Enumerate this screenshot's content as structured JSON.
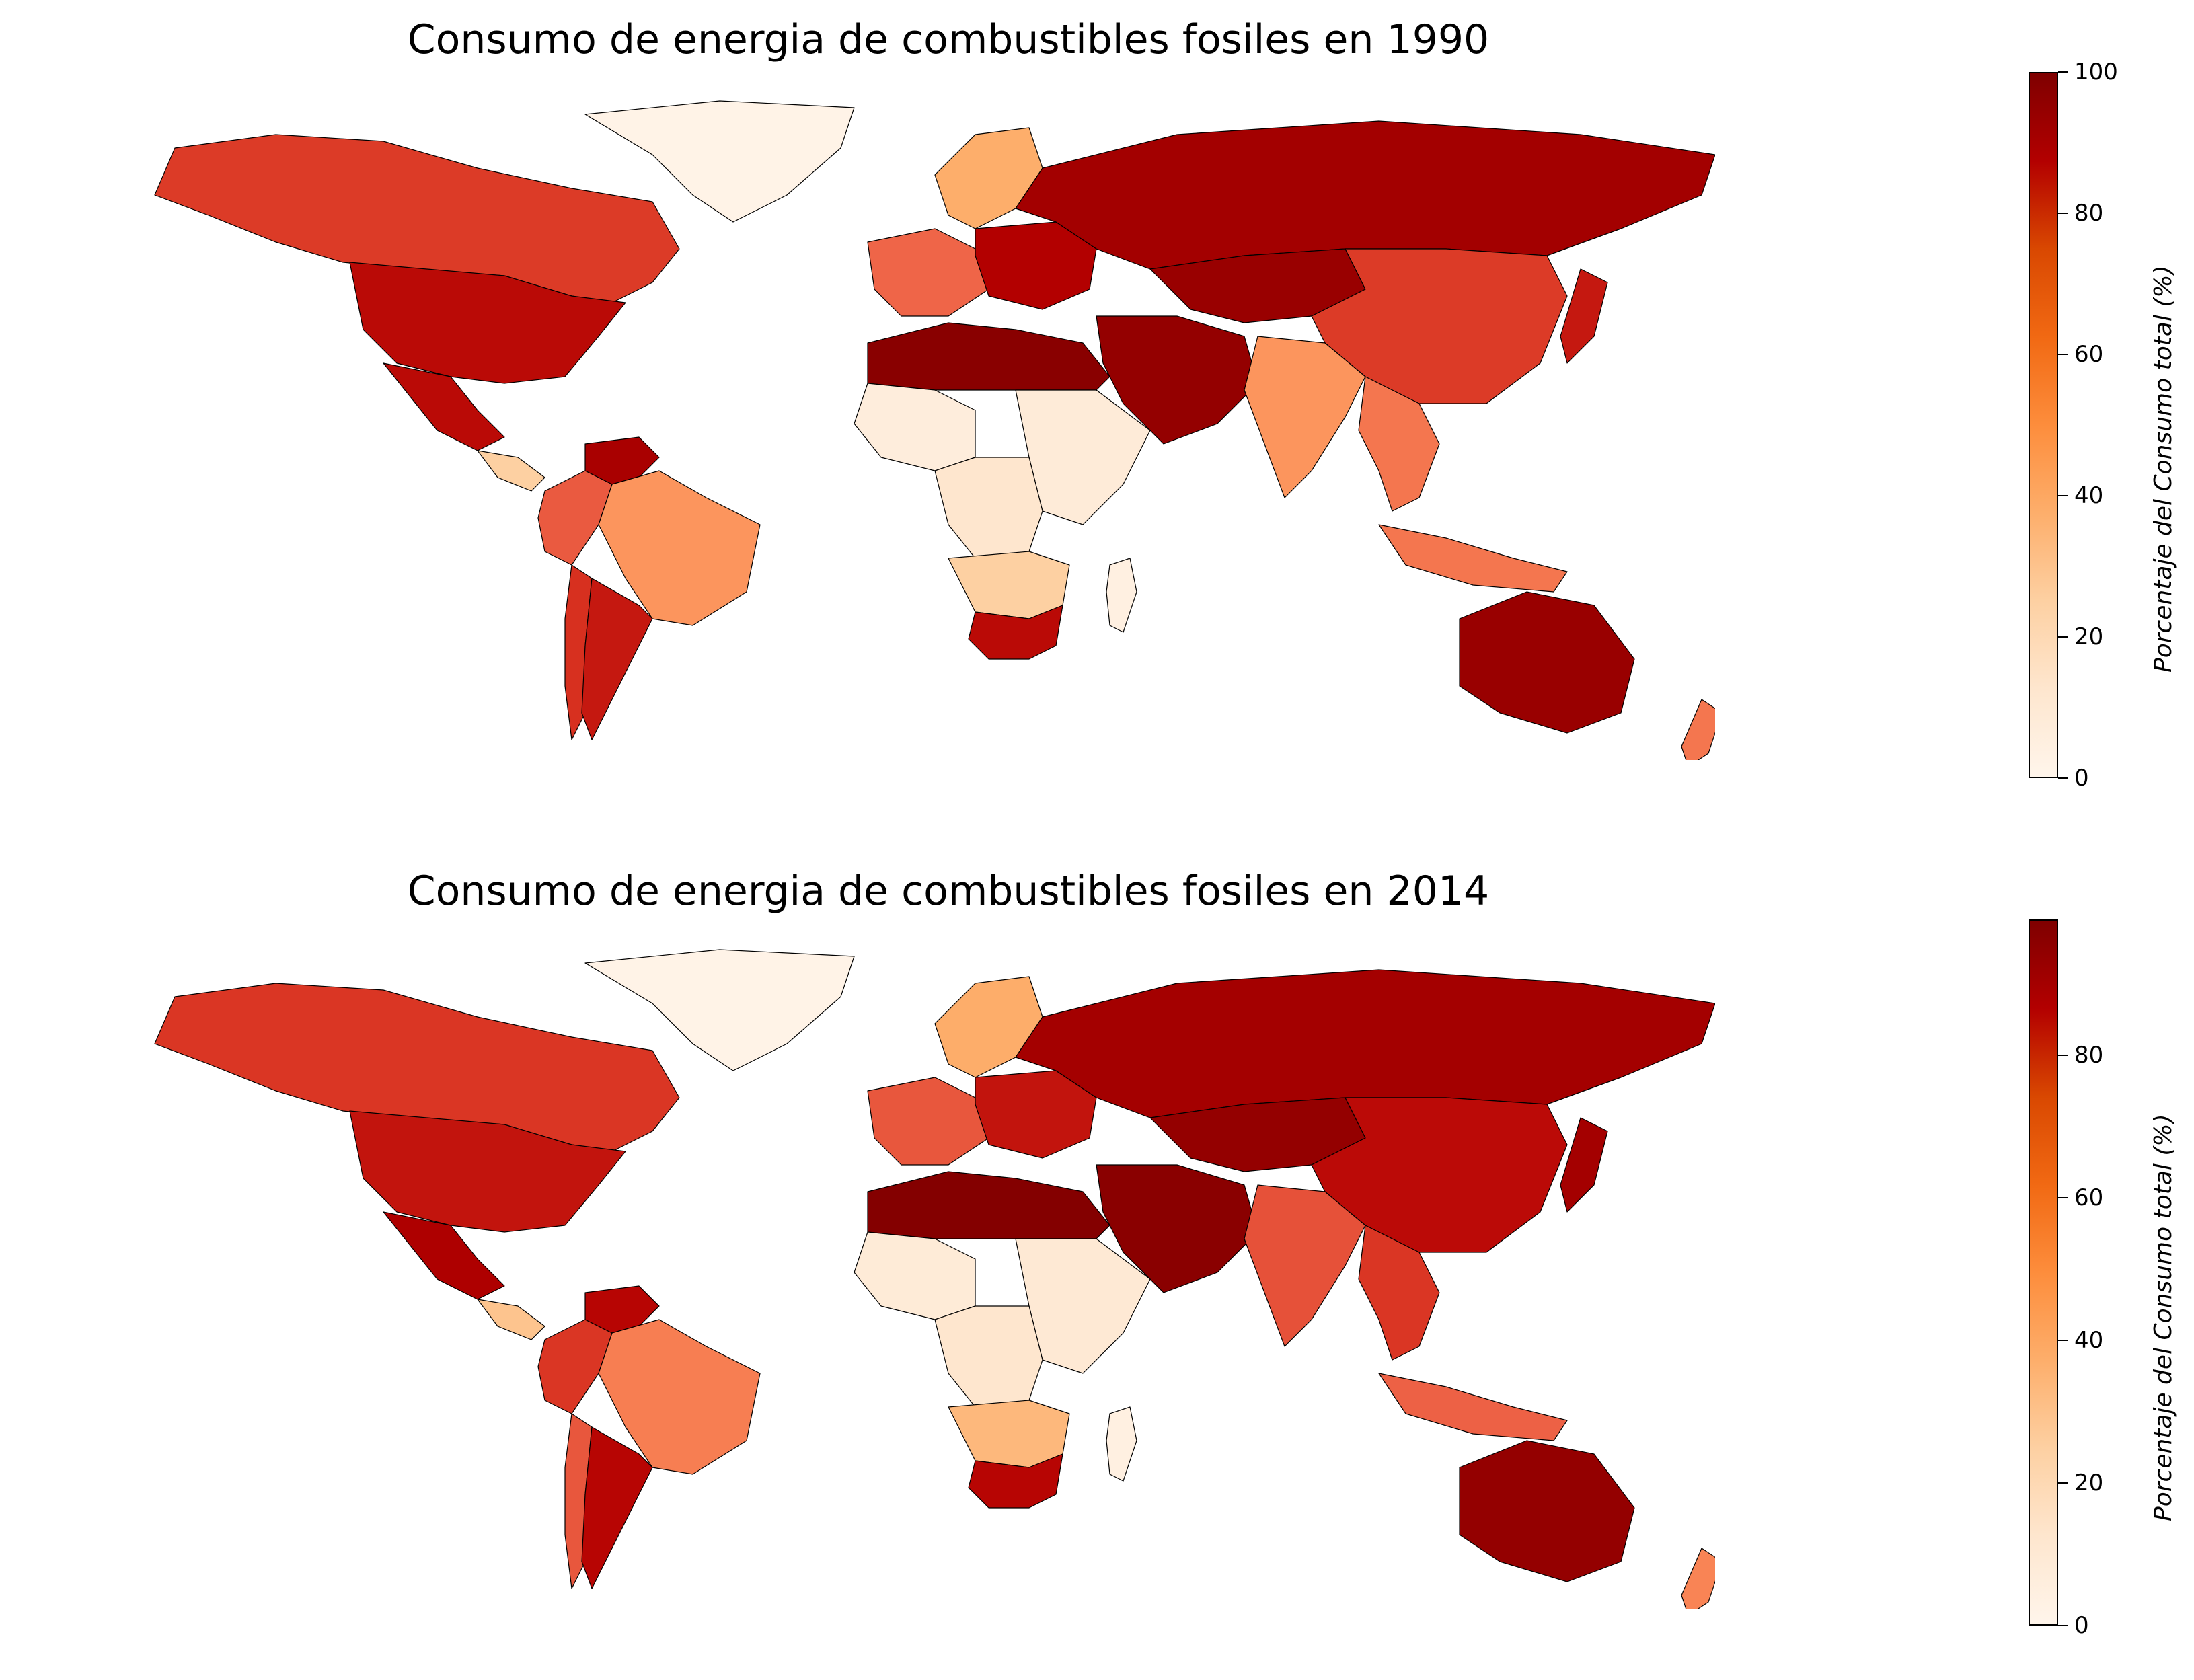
{
  "maps": [
    {
      "title": "Consumo de energia de combustibles fosiles en 1990",
      "colorbar": {
        "label": "Porcentaje del Consumo total (%)",
        "ticks": [
          "0",
          "20",
          "40",
          "60",
          "80",
          "100"
        ],
        "range": [
          0,
          100
        ]
      },
      "regions": {
        "north_america": 78,
        "usa": 88,
        "mexico": 88,
        "central_america": 30,
        "greenland": 2,
        "south_america_north": 72,
        "venezuela": 92,
        "brazil": 55,
        "argentina": 85,
        "chile": 80,
        "europe_west": 70,
        "europe_east": 90,
        "scandinavia": 45,
        "russia": 93,
        "north_africa": 98,
        "west_africa": 8,
        "central_africa": 15,
        "east_africa": 10,
        "southern_africa": 30,
        "south_africa": 88,
        "madagascar": 5,
        "middle_east": 96,
        "central_asia": 95,
        "china": 78,
        "india": 55,
        "southeast_asia": 65,
        "indonesia": 65,
        "japan": 85,
        "australia": 95,
        "new_zealand": 65
      }
    },
    {
      "title": "Consumo de energia de combustibles fosiles en 2014",
      "colorbar": {
        "label": "Porcentaje del Consumo total (%)",
        "ticks": [
          "0",
          "20",
          "40",
          "60",
          "80"
        ],
        "range": [
          0,
          99
        ]
      },
      "regions": {
        "north_america": 78,
        "usa": 85,
        "mexico": 90,
        "central_america": 35,
        "greenland": 2,
        "south_america_north": 78,
        "venezuela": 88,
        "brazil": 62,
        "argentina": 88,
        "chile": 72,
        "europe_west": 72,
        "europe_east": 85,
        "scandinavia": 45,
        "russia": 92,
        "north_africa": 98,
        "west_africa": 10,
        "central_africa": 15,
        "east_africa": 12,
        "southern_africa": 40,
        "south_africa": 88,
        "madagascar": 5,
        "middle_east": 97,
        "central_asia": 95,
        "china": 87,
        "india": 73,
        "southeast_asia": 78,
        "indonesia": 70,
        "japan": 92,
        "australia": 95,
        "new_zealand": 60
      }
    }
  ]
}
